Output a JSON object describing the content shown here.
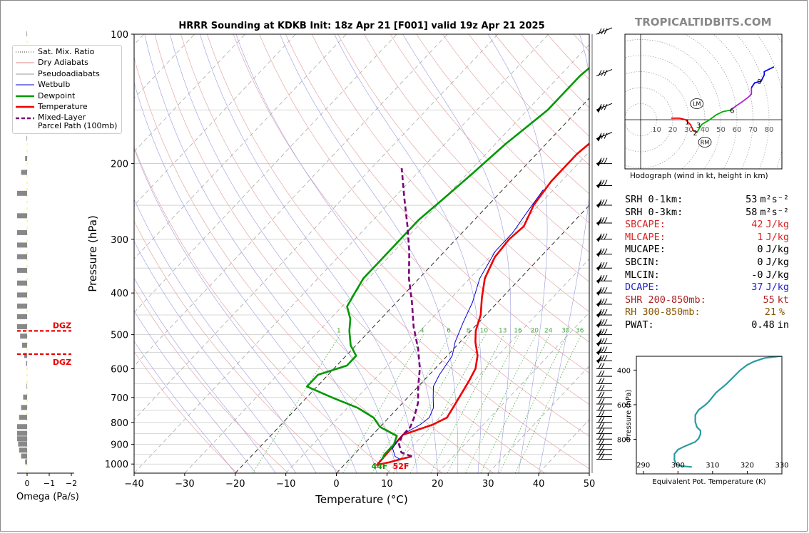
{
  "site": "TROPICALTIDBITS.COM",
  "title": "HRRR Sounding at KDKB Init: 18z Apr 21 [F001] valid 19z Apr 21 2025",
  "chart_data": [
    {
      "type": "line",
      "name": "skew-t",
      "xlabel": "Temperature (°C)",
      "ylabel": "Pressure (hPa)",
      "xlim": [
        -40,
        50
      ],
      "ylim": [
        1050,
        100
      ],
      "y_scale": "log",
      "x_ticks": [
        "−40",
        "−30",
        "−20",
        "−10",
        "0",
        "10",
        "20",
        "30",
        "40",
        "50"
      ],
      "y_ticks": [
        "100",
        "200",
        "300",
        "400",
        "500",
        "600",
        "700",
        "800",
        "900",
        "1000"
      ],
      "series": [
        {
          "name": "Temperature",
          "color": "#ee0000",
          "points": [
            [
              11.8,
              960
            ],
            [
              10,
              975
            ],
            [
              8.5,
              990
            ],
            [
              6.5,
              1005
            ],
            [
              6,
              855
            ],
            [
              10,
              810
            ],
            [
              11.5,
              780
            ],
            [
              10.5,
              720
            ],
            [
              9,
              640
            ],
            [
              8,
              600
            ],
            [
              6,
              560
            ],
            [
              3,
              520
            ],
            [
              1,
              490
            ],
            [
              -1,
              450
            ],
            [
              -4,
              410
            ],
            [
              -7,
              370
            ],
            [
              -9,
              330
            ],
            [
              -9.5,
              300
            ],
            [
              -9,
              280
            ],
            [
              -11,
              250
            ],
            [
              -12,
              220
            ],
            [
              -12,
              190
            ],
            [
              -11,
              170
            ],
            [
              -9,
              150
            ],
            [
              -6,
              130
            ],
            [
              -3,
              115
            ],
            [
              0,
              100
            ]
          ]
        },
        {
          "name": "Dewpoint",
          "color": "#009900",
          "points": [
            [
              6.5,
              975
            ],
            [
              6,
              950
            ],
            [
              6,
              900
            ],
            [
              5,
              860
            ],
            [
              0,
              820
            ],
            [
              -3,
              780
            ],
            [
              -8,
              740
            ],
            [
              -15,
              700
            ],
            [
              -22,
              660
            ],
            [
              -22,
              620
            ],
            [
              -18,
              590
            ],
            [
              -18,
              560
            ],
            [
              -21,
              530
            ],
            [
              -24,
              490
            ],
            [
              -26,
              460
            ],
            [
              -29,
              430
            ],
            [
              -30,
              400
            ],
            [
              -31,
              370
            ],
            [
              -31,
              340
            ],
            [
              -31,
              310
            ],
            [
              -31,
              270
            ],
            [
              -30,
              240
            ],
            [
              -29,
              210
            ],
            [
              -28,
              180
            ],
            [
              -26,
              150
            ],
            [
              -26,
              125
            ],
            [
              -24,
              100
            ]
          ]
        },
        {
          "name": "Wetbulb",
          "color": "#0000dd",
          "points": [
            [
              10,
              975
            ],
            [
              8.5,
              960
            ],
            [
              6.5,
              920
            ],
            [
              6,
              880
            ],
            [
              6,
              850
            ],
            [
              7.5,
              810
            ],
            [
              8,
              780
            ],
            [
              7,
              740
            ],
            [
              5,
              700
            ],
            [
              3,
              660
            ],
            [
              2,
              620
            ],
            [
              1,
              560
            ],
            [
              -1,
              520
            ],
            [
              -3,
              470
            ],
            [
              -5,
              420
            ],
            [
              -8,
              370
            ],
            [
              -10,
              320
            ],
            [
              -10,
              290
            ],
            [
              -11,
              260
            ],
            [
              -12,
              230
            ]
          ]
        },
        {
          "name": "Mixed-Layer Parcel Path (100mb)",
          "color": "#7a007a",
          "dashed": true,
          "points": [
            [
              11.8,
              960
            ],
            [
              9,
              940
            ],
            [
              7,
              900
            ],
            [
              6,
              860
            ],
            [
              6,
              820
            ],
            [
              5,
              780
            ],
            [
              3,
              720
            ],
            [
              0,
              660
            ],
            [
              -3,
              600
            ],
            [
              -7,
              540
            ],
            [
              -12,
              480
            ],
            [
              -17,
              420
            ],
            [
              -22,
              370
            ],
            [
              -27,
              320
            ],
            [
              -32,
              280
            ],
            [
              -38,
              240
            ],
            [
              -44,
              205
            ]
          ]
        }
      ],
      "mixing_ratio_labels": [
        "1",
        "4",
        "6",
        "8",
        "10",
        "13",
        "16",
        "20",
        "24",
        "30",
        "36"
      ],
      "sfc_dewpoint_label": "44F",
      "sfc_temp_label": "52F"
    },
    {
      "type": "bar",
      "name": "omega",
      "xlabel": "Omega (Pa/s)",
      "x_ticks": [
        "0",
        "−1",
        "−2"
      ],
      "xlim": [
        0,
        -2
      ],
      "dgz_label_1": "DGZ",
      "dgz_label_2": "DGZ",
      "dgz_pressures": [
        490,
        555
      ],
      "bars": [
        [
          100,
          0.05
        ],
        [
          130,
          0.05
        ],
        [
          150,
          0.05
        ],
        [
          175,
          0.05
        ],
        [
          195,
          0.2
        ],
        [
          210,
          0.6
        ],
        [
          235,
          1.0
        ],
        [
          265,
          1.0
        ],
        [
          290,
          1.0
        ],
        [
          310,
          1.0
        ],
        [
          330,
          1.0
        ],
        [
          355,
          1.0
        ],
        [
          380,
          1.0
        ],
        [
          405,
          1.0
        ],
        [
          430,
          1.0
        ],
        [
          455,
          1.0
        ],
        [
          480,
          1.0
        ],
        [
          505,
          0.7
        ],
        [
          530,
          0.5
        ],
        [
          560,
          0.3
        ],
        [
          585,
          0.1
        ],
        [
          660,
          0.05
        ],
        [
          700,
          0.4
        ],
        [
          740,
          0.6
        ],
        [
          780,
          0.8
        ],
        [
          820,
          1.0
        ],
        [
          850,
          1.0
        ],
        [
          875,
          1.0
        ],
        [
          900,
          0.9
        ],
        [
          930,
          0.8
        ],
        [
          960,
          0.6
        ],
        [
          990,
          0.2
        ]
      ]
    },
    {
      "type": "line",
      "name": "hodograph",
      "caption": "Hodograph (wind in kt, height in km)",
      "ring_labels": [
        "10",
        "20",
        "30",
        "40",
        "50",
        "60",
        "70",
        "80"
      ],
      "height_labels": [
        {
          "label": "1",
          "u": 29,
          "v": -1
        },
        {
          "label": "2",
          "u": 34,
          "v": -8
        },
        {
          "label": "3",
          "u": 36,
          "v": -3
        },
        {
          "label": "6",
          "u": 57,
          "v": 6
        },
        {
          "label": "9",
          "u": 74,
          "v": 24
        }
      ],
      "lm_label": "LM",
      "rm_label": "RM",
      "lm": [
        35,
        10
      ],
      "rm": [
        40,
        -14
      ],
      "segments": [
        {
          "color": "#ee0000",
          "points": [
            [
              19,
              1
            ],
            [
              24,
              1
            ],
            [
              28,
              0
            ],
            [
              31,
              -3
            ],
            [
              33,
              -7
            ],
            [
              35,
              -8
            ]
          ]
        },
        {
          "color": "#00aa00",
          "points": [
            [
              35,
              -8
            ],
            [
              38,
              -3
            ],
            [
              43,
              0
            ],
            [
              47,
              3
            ],
            [
              51,
              5
            ],
            [
              56,
              6
            ]
          ]
        },
        {
          "color": "#aa22cc",
          "points": [
            [
              56,
              6
            ],
            [
              60,
              9
            ],
            [
              63,
              11
            ],
            [
              67,
              14
            ],
            [
              69,
              16
            ],
            [
              69,
              20
            ]
          ]
        },
        {
          "color": "#0000ee",
          "points": [
            [
              69,
              20
            ],
            [
              71,
              23
            ],
            [
              75,
              24
            ],
            [
              77,
              28
            ],
            [
              77,
              30
            ],
            [
              83,
              33
            ]
          ]
        }
      ]
    },
    {
      "type": "line",
      "name": "theta-e",
      "xlabel": "Equivalent Pot. Temperature (K)",
      "ylabel": "Pressure (hPa)",
      "xlim": [
        288,
        330
      ],
      "ylim": [
        1000,
        320
      ],
      "x_ticks": [
        "290",
        "300",
        "310",
        "320",
        "330"
      ],
      "y_ticks": [
        "400",
        "600",
        "800"
      ],
      "series": [
        {
          "color": "#2a9aa0",
          "points": [
            [
              304,
              960
            ],
            [
              301,
              955
            ],
            [
              299.5,
              945
            ],
            [
              299,
              920
            ],
            [
              299,
              885
            ],
            [
              300,
              860
            ],
            [
              302,
              840
            ],
            [
              305,
              815
            ],
            [
              306,
              795
            ],
            [
              306.5,
              770
            ],
            [
              306.5,
              750
            ],
            [
              305.5,
              730
            ],
            [
              305,
              700
            ],
            [
              305,
              660
            ],
            [
              306,
              630
            ],
            [
              308,
              600
            ],
            [
              309,
              580
            ],
            [
              311,
              530
            ],
            [
              314,
              480
            ],
            [
              316,
              440
            ],
            [
              318,
              400
            ],
            [
              320,
              370
            ],
            [
              322,
              350
            ],
            [
              325,
              330
            ],
            [
              330,
              318
            ]
          ]
        }
      ]
    }
  ],
  "legend": [
    {
      "label": "Sat. Mix. Ratio",
      "color": "#333333",
      "style": "dotted"
    },
    {
      "label": "Dry Adiabats",
      "color": "#dd8888",
      "style": "solid"
    },
    {
      "label": "Pseudoadiabats",
      "color": "#999999",
      "style": "solid"
    },
    {
      "label": "Wetbulb",
      "color": "#0000dd",
      "style": "solid"
    },
    {
      "label": "Dewpoint",
      "color": "#009900",
      "style": "thick"
    },
    {
      "label": "Temperature",
      "color": "#ee0000",
      "style": "thick"
    },
    {
      "label": "Mixed-Layer\nParcel Path (100mb)",
      "color": "#7a007a",
      "style": "dashed"
    }
  ],
  "stats": [
    {
      "label": "SRH 0-1km:",
      "value": "53",
      "unit": "m²s⁻²",
      "color": "#000000"
    },
    {
      "label": "SRH 0-3km:",
      "value": "58",
      "unit": "m²s⁻²",
      "color": "#000000"
    },
    {
      "label": "SBCAPE:",
      "value": "42",
      "unit": "J/kg",
      "color": "#dd2222"
    },
    {
      "label": "MLCAPE:",
      "value": "1",
      "unit": "J/kg",
      "color": "#dd2222"
    },
    {
      "label": "MUCAPE:",
      "value": "0",
      "unit": "J/kg",
      "color": "#000000"
    },
    {
      "label": "SBCIN:",
      "value": "0",
      "unit": "J/kg",
      "color": "#000000"
    },
    {
      "label": "MLCIN:",
      "value": "-0",
      "unit": "J/kg",
      "color": "#000000"
    },
    {
      "label": "DCAPE:",
      "value": "37",
      "unit": "J/kg",
      "color": "#2222cc"
    },
    {
      "label": "SHR 200-850mb:",
      "value": "55",
      "unit": "kt",
      "color": "#aa2222"
    },
    {
      "label": "RH 300-850mb:",
      "value": "21",
      "unit": "%",
      "color": "#885500"
    },
    {
      "label": "PWAT:",
      "value": "0.48",
      "unit": "in",
      "color": "#000000"
    }
  ]
}
